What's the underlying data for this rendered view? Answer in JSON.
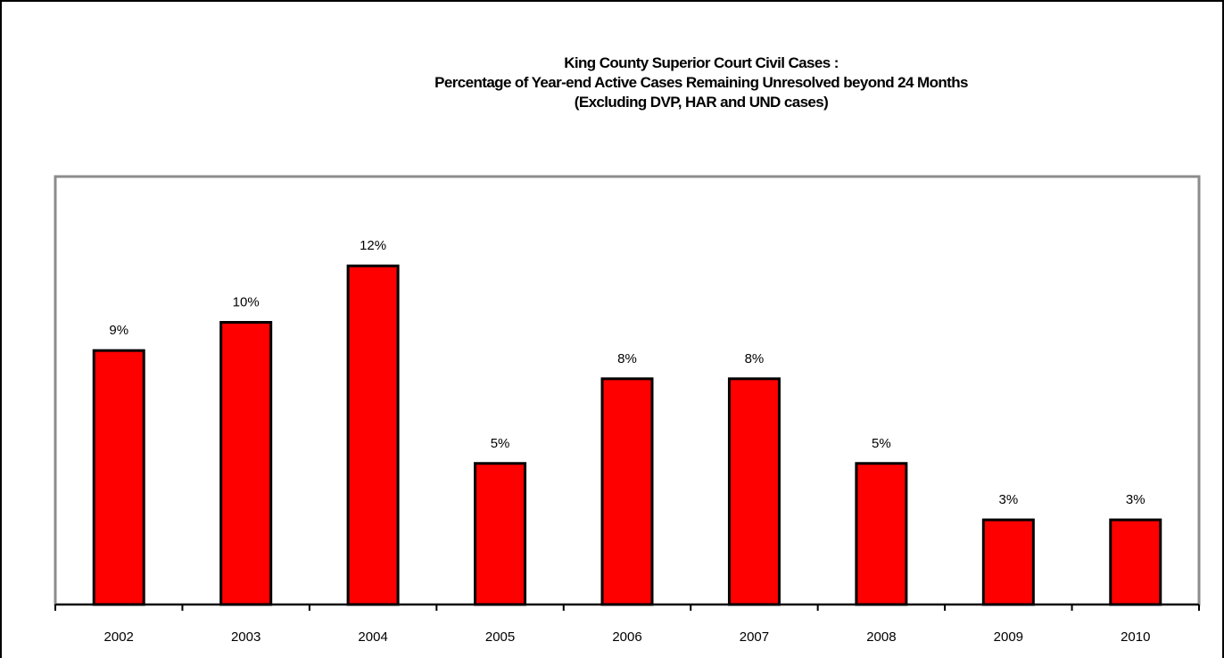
{
  "chart_data": {
    "type": "bar",
    "title_lines": [
      "King County Superior Court Civil Cases :",
      "Percentage of Year-end Active Cases Remaining Unresolved beyond 24 Months",
      "(Excluding DVP, HAR and UND cases)"
    ],
    "categories": [
      "2002",
      "2003",
      "2004",
      "2005",
      "2006",
      "2007",
      "2008",
      "2009",
      "2010"
    ],
    "values": [
      9,
      10,
      12,
      5,
      8,
      8,
      5,
      3,
      3
    ],
    "data_labels": [
      "9%",
      "10%",
      "12%",
      "5%",
      "8%",
      "8%",
      "5%",
      "3%",
      "3%"
    ],
    "unit": "%",
    "ylim": [
      0,
      14
    ],
    "grid": false,
    "legend": "none",
    "bar_color": "#ff0000",
    "bar_edge_color": "#000000",
    "plot_border_color": "#8c8c8c"
  }
}
